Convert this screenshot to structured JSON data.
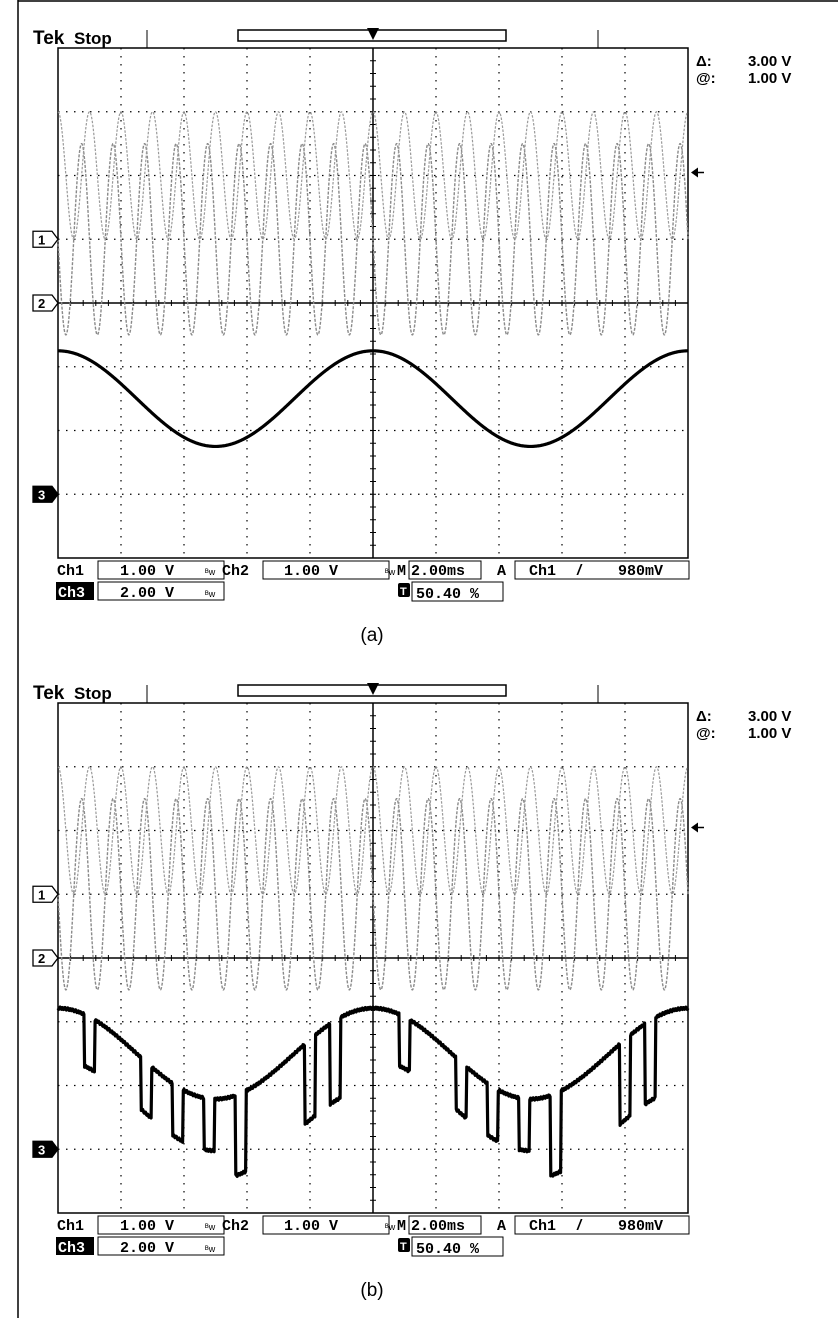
{
  "panels": [
    {
      "id": "a",
      "caption": "(a)",
      "brand": "Tek",
      "status": "Stop",
      "cursor": {
        "delta_label": "Δ:",
        "delta_value": "3.00 V",
        "at_label": "@:",
        "at_value": "1.00 V"
      },
      "channel_markers": [
        "1",
        "2",
        "3"
      ],
      "readout": {
        "ch1_label": "Ch1",
        "ch1_scale": "1.00 V",
        "ch2_label": "Ch2",
        "ch2_scale": "1.00 V",
        "timebase_label": "M",
        "timebase": "2.00ms",
        "trigger_mode": "A",
        "trigger_source": "Ch1",
        "trigger_slope": "/",
        "trigger_level": "980mV",
        "ch3_label": "Ch3",
        "ch3_scale": "2.00 V",
        "trigger_position": "50.40 %"
      },
      "waveform3": "sine"
    },
    {
      "id": "b",
      "caption": "(b)",
      "brand": "Tek",
      "status": "Stop",
      "cursor": {
        "delta_label": "Δ:",
        "delta_value": "3.00 V",
        "at_label": "@:",
        "at_value": "1.00 V"
      },
      "channel_markers": [
        "1",
        "2",
        "3"
      ],
      "readout": {
        "ch1_label": "Ch1",
        "ch1_scale": "1.00 V",
        "ch2_label": "Ch2",
        "ch2_scale": "1.00 V",
        "timebase_label": "M",
        "timebase": "2.00ms",
        "trigger_mode": "A",
        "trigger_source": "Ch1",
        "trigger_slope": "/",
        "trigger_level": "980mV",
        "ch3_label": "Ch3",
        "ch3_scale": "2.00 V",
        "trigger_position": "50.40 %"
      },
      "waveform3": "sine-with-dropouts"
    }
  ],
  "chart_data": [
    {
      "type": "line",
      "panel": "a",
      "x_unit": "ms",
      "x_divisions": 10,
      "x_per_div_ms": 2.0,
      "y_divisions": 8,
      "grid": true,
      "series": [
        {
          "name": "Ch1",
          "volts_per_div": 1.0,
          "shape": "sine",
          "cycles": 20,
          "amplitude_div": 1.0
        },
        {
          "name": "Ch2",
          "volts_per_div": 1.0,
          "shape": "sine",
          "cycles": 20,
          "amplitude_div": 1.5,
          "phase_deg": 180
        },
        {
          "name": "Ch3",
          "volts_per_div": 2.0,
          "shape": "sine",
          "cycles": 2,
          "amplitude_div": 0.75,
          "offset_div": 0.75
        }
      ]
    },
    {
      "type": "line",
      "panel": "b",
      "x_unit": "ms",
      "x_divisions": 10,
      "x_per_div_ms": 2.0,
      "y_divisions": 8,
      "grid": true,
      "series": [
        {
          "name": "Ch1",
          "volts_per_div": 1.0,
          "shape": "sine",
          "cycles": 20,
          "amplitude_div": 1.0
        },
        {
          "name": "Ch2",
          "volts_per_div": 1.0,
          "shape": "sine",
          "cycles": 20,
          "amplitude_div": 1.5,
          "phase_deg": 180
        },
        {
          "name": "Ch3",
          "volts_per_div": 2.0,
          "shape": "sine-with-dropouts",
          "cycles": 2,
          "amplitude_div": 0.75,
          "offset_div": 0.75
        }
      ]
    }
  ]
}
